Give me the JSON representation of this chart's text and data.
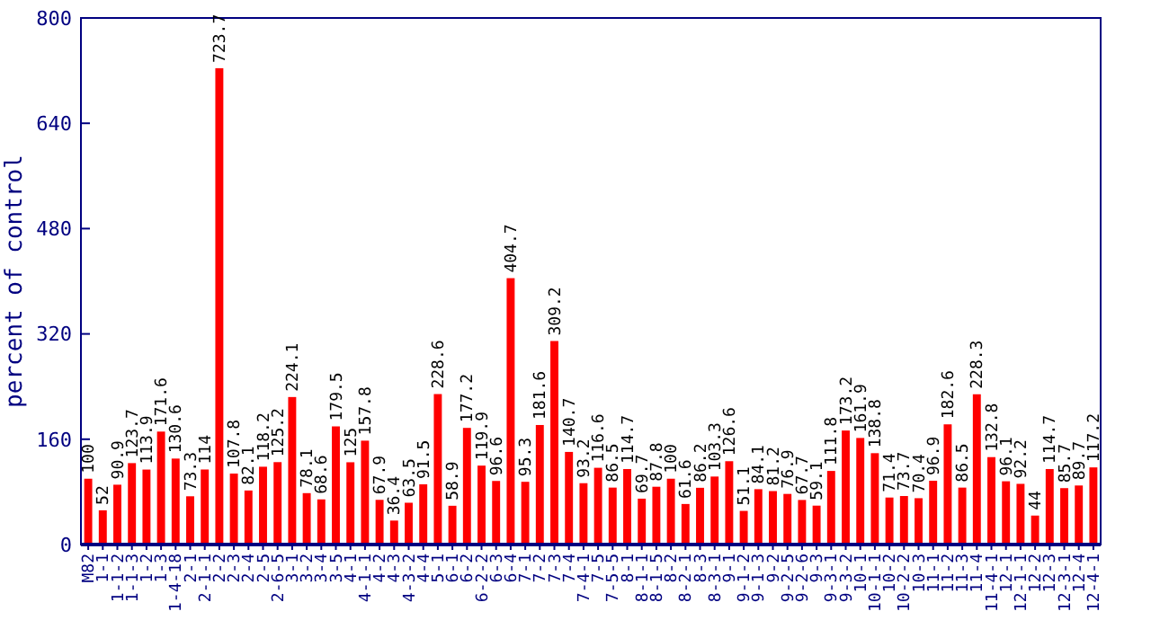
{
  "chart_data": {
    "type": "bar",
    "ylabel": "percent of control",
    "categories": [
      "M82",
      "1-1",
      "1-1-2",
      "1-1-3",
      "1-2",
      "1-3",
      "1-4-18",
      "2-1",
      "2-1-1",
      "2-2",
      "2-3",
      "2-4",
      "2-5",
      "2-6-5",
      "3-1",
      "3-2",
      "3-4",
      "3-5",
      "4-1",
      "4-1-1",
      "4-2",
      "4-3",
      "4-3-2",
      "4-4",
      "5-1",
      "6-1",
      "6-2",
      "6-2-2",
      "6-3",
      "6-4",
      "7-1",
      "7-2",
      "7-3",
      "7-4",
      "7-4-1",
      "7-5",
      "7-5-5",
      "8-1",
      "8-1-1",
      "8-1-5",
      "8-2",
      "8-2-1",
      "8-3",
      "8-3-1",
      "9-1",
      "9-1-2",
      "9-1-3",
      "9-2",
      "9-2-5",
      "9-2-6",
      "9-3",
      "9-3-1",
      "9-3-2",
      "10-1",
      "10-1-1",
      "10-2",
      "10-2-2",
      "10-3",
      "11-1",
      "11-2",
      "11-3",
      "11-4",
      "11-4-1",
      "12-1",
      "12-1-1",
      "12-2",
      "12-3",
      "12-3-1",
      "12-4",
      "12-4-1"
    ],
    "values": [
      100,
      52,
      90.9,
      123.7,
      113.9,
      171.6,
      130.6,
      73.3,
      114,
      723.7,
      107.8,
      82.1,
      118.2,
      125.2,
      224.1,
      78.1,
      68.6,
      179.5,
      125,
      157.8,
      67.9,
      36.4,
      63.5,
      91.5,
      228.6,
      58.9,
      177.2,
      119.9,
      96.6,
      404.7,
      95.3,
      181.6,
      309.2,
      140.7,
      93.2,
      116.6,
      86.5,
      114.7,
      69.7,
      87.8,
      100,
      61.6,
      86.2,
      103.3,
      126.6,
      51.1,
      84.1,
      81.2,
      76.9,
      67.7,
      59.1,
      111.8,
      173.2,
      161.9,
      138.8,
      71.4,
      73.7,
      70.4,
      96.9,
      182.6,
      86.5,
      228.3,
      132.8,
      96.1,
      92.2,
      44,
      114.7,
      85.7,
      89.7,
      117.2
    ],
    "color": "#ff0000",
    "ylim": [
      0,
      800
    ],
    "yticks": [
      0,
      160,
      320,
      480,
      640,
      800
    ],
    "data_labels": true
  }
}
